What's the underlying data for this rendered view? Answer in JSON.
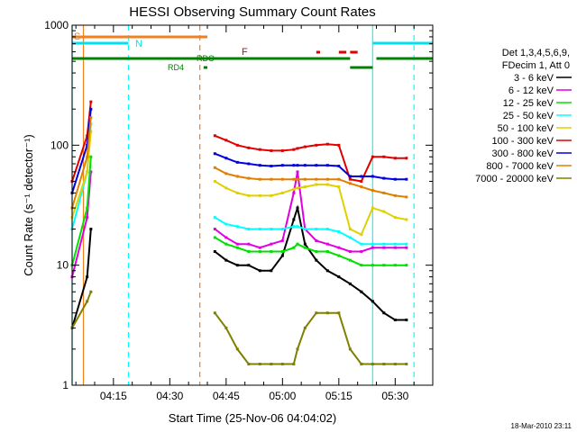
{
  "chart_data": {
    "type": "line",
    "title": "HESSI Observing Summary Count Rates",
    "xlabel": "Start Time (25-Nov-06 04:04:02)",
    "ylabel": "Count Rate (s⁻¹ detector⁻¹)",
    "yscale": "log",
    "ylim": [
      1,
      1000
    ],
    "y_ticks": [
      1,
      10,
      100,
      1000
    ],
    "y_tick_labels": [
      "1",
      "10",
      "100",
      "1000"
    ],
    "xlim": [
      "04:04",
      "05:40"
    ],
    "x_tick_labels": [
      "04:15",
      "04:30",
      "04:45",
      "05:00",
      "05:15",
      "05:30"
    ],
    "legend_header": [
      "Det 1,3,4,5,6,9,",
      "FDecim 1, Att 0"
    ],
    "legend_position": "right",
    "series": [
      {
        "name": "3 - 6 keV",
        "color": "#000000",
        "x": [
          "04:04",
          "04:08",
          "04:09",
          "04:38",
          "04:39",
          "04:42",
          "04:45",
          "04:48",
          "04:51",
          "04:54",
          "04:57",
          "05:00",
          "05:03",
          "05:04",
          "05:06",
          "05:09",
          "05:12",
          "05:15",
          "05:18",
          "05:21",
          "05:24",
          "05:27",
          "05:30",
          "05:33"
        ],
        "y": [
          3,
          8,
          20,
          null,
          null,
          13,
          11,
          10,
          10,
          9,
          9,
          12,
          24,
          30,
          15,
          11,
          9,
          8,
          7,
          6,
          5,
          4,
          3.5,
          3.5
        ]
      },
      {
        "name": "6 - 12 keV",
        "color": "#e000e0",
        "x": [
          "04:04",
          "04:08",
          "04:09",
          "04:38",
          "04:39",
          "04:42",
          "04:45",
          "04:48",
          "04:51",
          "04:54",
          "04:57",
          "05:00",
          "05:03",
          "05:04",
          "05:06",
          "05:09",
          "05:12",
          "05:15",
          "05:18",
          "05:21",
          "05:24",
          "05:27",
          "05:30",
          "05:33"
        ],
        "y": [
          8,
          25,
          60,
          null,
          null,
          20,
          17,
          15,
          15,
          14,
          15,
          16,
          40,
          60,
          20,
          16,
          15,
          14,
          13,
          13,
          14,
          14,
          14,
          14
        ]
      },
      {
        "name": "12 - 25 keV",
        "color": "#00e000",
        "x": [
          "04:04",
          "04:08",
          "04:09",
          "04:38",
          "04:39",
          "04:42",
          "04:45",
          "04:48",
          "04:51",
          "04:54",
          "04:57",
          "05:00",
          "05:03",
          "05:04",
          "05:06",
          "05:09",
          "05:12",
          "05:15",
          "05:18",
          "05:21",
          "05:24",
          "05:27",
          "05:30",
          "05:33"
        ],
        "y": [
          10,
          30,
          80,
          null,
          null,
          17,
          15,
          14,
          13,
          13,
          13,
          13,
          14,
          15,
          14,
          13,
          13,
          12,
          11,
          10,
          10,
          10,
          10,
          10
        ]
      },
      {
        "name": "25 - 50 keV",
        "color": "#00ffff",
        "x": [
          "04:04",
          "04:08",
          "04:09",
          "04:38",
          "04:39",
          "04:42",
          "04:45",
          "04:48",
          "04:51",
          "04:54",
          "04:57",
          "05:00",
          "05:03",
          "05:04",
          "05:06",
          "05:09",
          "05:12",
          "05:15",
          "05:18",
          "05:21",
          "05:24",
          "05:27",
          "05:30",
          "05:33"
        ],
        "y": [
          20,
          60,
          150,
          null,
          null,
          25,
          22,
          21,
          20,
          20,
          20,
          20,
          21,
          21,
          20,
          20,
          20,
          19,
          17,
          15,
          15,
          15,
          15,
          15
        ]
      },
      {
        "name": "50 - 100 keV",
        "color": "#e0d000",
        "x": [
          "04:04",
          "04:08",
          "04:09",
          "04:38",
          "04:39",
          "04:42",
          "04:45",
          "04:48",
          "04:51",
          "04:54",
          "04:57",
          "05:00",
          "05:03",
          "05:04",
          "05:06",
          "05:09",
          "05:12",
          "05:15",
          "05:18",
          "05:21",
          "05:24",
          "05:27",
          "05:30",
          "05:33"
        ],
        "y": [
          25,
          60,
          130,
          null,
          null,
          50,
          44,
          40,
          38,
          38,
          38,
          40,
          43,
          44,
          45,
          47,
          47,
          45,
          20,
          18,
          30,
          28,
          25,
          24
        ]
      },
      {
        "name": "100 - 300 keV",
        "color": "#e00000",
        "x": [
          "04:04",
          "04:08",
          "04:09",
          "04:38",
          "04:39",
          "04:42",
          "04:45",
          "04:48",
          "04:51",
          "04:54",
          "04:57",
          "05:00",
          "05:03",
          "05:04",
          "05:06",
          "05:09",
          "05:12",
          "05:15",
          "05:18",
          "05:21",
          "05:24",
          "05:27",
          "05:30",
          "05:33"
        ],
        "y": [
          50,
          120,
          230,
          null,
          null,
          120,
          110,
          100,
          95,
          92,
          90,
          90,
          92,
          94,
          97,
          100,
          102,
          100,
          52,
          50,
          80,
          80,
          78,
          78
        ]
      },
      {
        "name": "300 - 800 keV",
        "color": "#0000e0",
        "x": [
          "04:04",
          "04:08",
          "04:09",
          "04:38",
          "04:39",
          "04:42",
          "04:45",
          "04:48",
          "04:51",
          "04:54",
          "04:57",
          "05:00",
          "05:03",
          "05:04",
          "05:06",
          "05:09",
          "05:12",
          "05:15",
          "05:18",
          "05:21",
          "05:24",
          "05:27",
          "05:30",
          "05:33"
        ],
        "y": [
          40,
          100,
          200,
          null,
          null,
          85,
          78,
          72,
          70,
          68,
          67,
          68,
          68,
          68,
          68,
          68,
          68,
          67,
          55,
          55,
          55,
          53,
          52,
          52
        ]
      },
      {
        "name": "800 - 7000 keV",
        "color": "#e08000",
        "x": [
          "04:04",
          "04:08",
          "04:09",
          "04:38",
          "04:39",
          "04:42",
          "04:45",
          "04:48",
          "04:51",
          "04:54",
          "04:57",
          "05:00",
          "05:03",
          "05:04",
          "05:06",
          "05:09",
          "05:12",
          "05:15",
          "05:18",
          "05:21",
          "05:24",
          "05:27",
          "05:30",
          "05:33"
        ],
        "y": [
          30,
          80,
          170,
          null,
          null,
          65,
          58,
          55,
          53,
          52,
          52,
          52,
          52,
          52,
          52,
          52,
          52,
          52,
          48,
          45,
          42,
          40,
          38,
          37
        ]
      },
      {
        "name": "7000 - 20000 keV",
        "color": "#808000",
        "x": [
          "04:04",
          "04:08",
          "04:09",
          "04:38",
          "04:39",
          "04:42",
          "04:45",
          "04:48",
          "04:51",
          "04:54",
          "04:57",
          "05:00",
          "05:03",
          "05:04",
          "05:06",
          "05:09",
          "05:12",
          "05:15",
          "05:18",
          "05:21",
          "05:24",
          "05:27",
          "05:30",
          "05:33"
        ],
        "y": [
          3,
          5,
          6,
          null,
          null,
          4,
          3,
          2,
          1.5,
          1.5,
          1.5,
          1.5,
          1.5,
          2,
          3,
          4,
          4,
          4,
          2,
          1.5,
          1.5,
          1.5,
          1.5,
          1.5
        ]
      }
    ],
    "flag_bars": [
      {
        "label": "S",
        "color": "#f08020",
        "segments": [
          [
            "04:04",
            "04:40"
          ]
        ]
      },
      {
        "label": "N",
        "color": "#00e0f0",
        "segments": [
          [
            "04:04",
            "04:19"
          ],
          [
            "05:24",
            "05:40"
          ]
        ]
      },
      {
        "label": "F",
        "color": "#e00000",
        "segments": [
          [
            "05:09",
            "05:10"
          ],
          [
            "05:15",
            "05:17"
          ],
          [
            "05:18",
            "05:20"
          ]
        ]
      },
      {
        "label": "RDO",
        "color": "#008000",
        "segments": [
          [
            "04:04",
            "05:18"
          ],
          [
            "05:25",
            "05:40"
          ]
        ]
      },
      {
        "label": "RD4",
        "color": "#008000",
        "segments": [
          [
            "04:39",
            "04:40"
          ],
          [
            "05:18",
            "05:24"
          ]
        ]
      }
    ],
    "vertical_markers": [
      {
        "x": "04:04",
        "color": "#00ffff",
        "style": "solid"
      },
      {
        "x": "04:07",
        "color": "#f08020",
        "style": "solid"
      },
      {
        "x": "04:19",
        "color": "#00ffff",
        "style": "dashed"
      },
      {
        "x": "04:38",
        "color": "#f08020",
        "style": "dashed"
      },
      {
        "x": "05:24",
        "color": "#00ffff",
        "style": "solid"
      },
      {
        "x": "05:35",
        "color": "#00ffff",
        "style": "dashed"
      }
    ],
    "grid": false
  },
  "footer": {
    "timestamp": "18-Mar-2010 23:11"
  }
}
